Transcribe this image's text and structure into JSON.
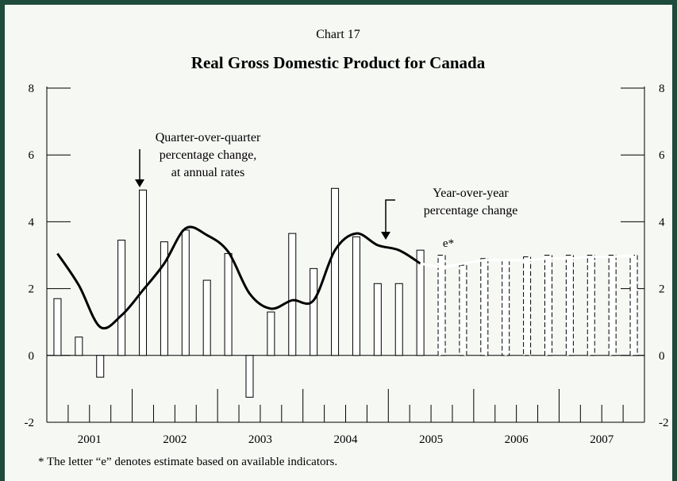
{
  "chart_data": {
    "type": "bar",
    "kicker": "Chart 17",
    "title": "Real Gross Domestic Product for Canada",
    "ylim": [
      -2,
      8
    ],
    "yticks": [
      "-2",
      "0",
      "2",
      "4",
      "6",
      "8"
    ],
    "year_labels": [
      "2001",
      "2002",
      "2003",
      "2004",
      "2005",
      "2006",
      "2007"
    ],
    "grid": false,
    "series": [
      {
        "values": [
          1.7,
          0.55,
          -0.65,
          3.45,
          4.95,
          3.4,
          3.75,
          2.25,
          3.05,
          -1.25,
          1.3,
          3.65,
          2.6,
          5.0,
          3.55,
          2.15,
          2.15,
          3.15,
          3.0,
          2.7,
          2.9,
          2.85,
          2.95,
          3.0,
          3.0,
          3.0,
          3.0,
          3.0
        ],
        "estimate_from_index": 18
      },
      {
        "type": "line",
        "values": [
          3.05,
          2.1,
          0.85,
          1.2,
          1.95,
          2.75,
          3.8,
          3.6,
          3.1,
          1.85,
          1.4,
          1.65,
          1.65,
          3.15,
          3.65,
          3.3,
          3.15,
          2.75,
          2.65,
          2.75,
          2.85,
          2.85,
          2.85,
          2.9,
          2.9,
          2.95,
          2.95,
          3.0
        ],
        "estimate_from_index": 17
      }
    ],
    "annotations": {
      "qoq": [
        "Quarter-over-quarter",
        "percentage change,",
        "at annual rates"
      ],
      "yoy": [
        "Year-over-year",
        "percentage change"
      ],
      "estimate": "e*"
    },
    "footnote": "* The letter “e” denotes estimate based on available indicators."
  },
  "colors": {
    "frame": "#1f4b3c",
    "background": "#f6f8f4",
    "ink": "#000000",
    "estimate_line": "#ffffff"
  }
}
